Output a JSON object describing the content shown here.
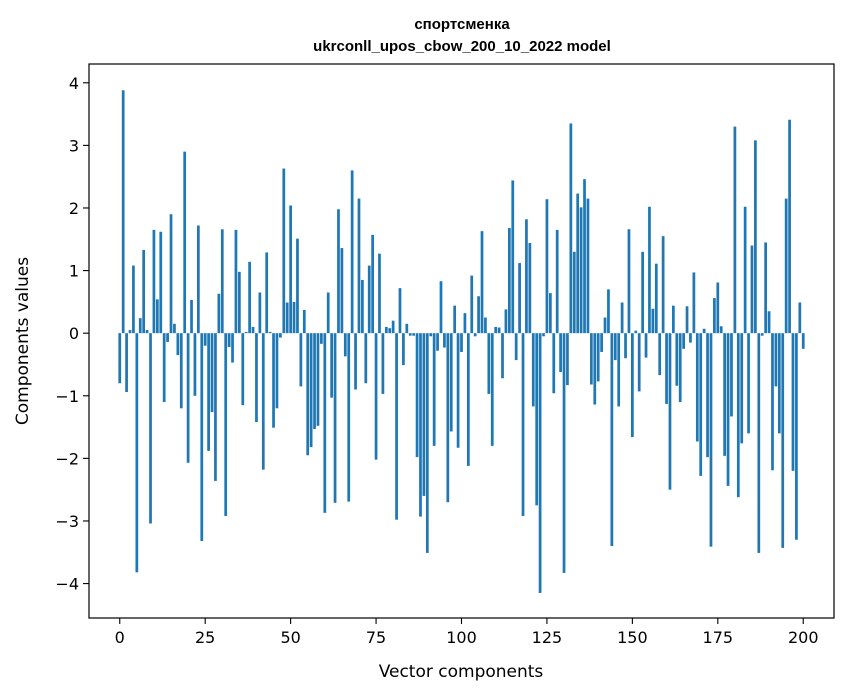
{
  "chart_data": {
    "type": "bar",
    "title_line1": "спортсменка",
    "title_line2": "ukrconll_upos_cbow_200_10_2022 model",
    "xlabel": "Vector components",
    "ylabel": "Components values",
    "xlim": [
      -9,
      209
    ],
    "ylim": [
      -4.55,
      4.3
    ],
    "xticks": [
      0,
      25,
      50,
      75,
      100,
      125,
      150,
      175,
      200
    ],
    "xtick_labels": [
      "0",
      "25",
      "50",
      "75",
      "100",
      "125",
      "150",
      "175",
      "200"
    ],
    "yticks": [
      -4,
      -3,
      -2,
      -1,
      0,
      1,
      2,
      3,
      4
    ],
    "ytick_labels": [
      "−4",
      "−3",
      "−2",
      "−1",
      "0",
      "1",
      "2",
      "3",
      "4"
    ],
    "grid": false,
    "bar_color": "#1f77b4",
    "values": [
      -0.8,
      3.88,
      -0.94,
      0.05,
      1.08,
      -3.82,
      0.24,
      1.33,
      0.05,
      -3.04,
      1.65,
      0.54,
      1.62,
      -1.1,
      -0.14,
      1.9,
      0.15,
      -0.35,
      -1.2,
      2.9,
      -2.07,
      0.53,
      -1.0,
      1.72,
      -3.32,
      -0.2,
      -1.88,
      -1.26,
      -2.36,
      0.63,
      1.66,
      -2.92,
      -0.22,
      -0.47,
      1.65,
      0.98,
      -1.15,
      0.02,
      1.14,
      0.1,
      -1.42,
      0.65,
      -2.18,
      1.29,
      0.02,
      -1.51,
      -1.2,
      -0.07,
      2.63,
      0.49,
      2.04,
      0.5,
      1.51,
      -0.85,
      0.37,
      -1.95,
      -1.82,
      -1.53,
      -1.48,
      -0.17,
      -2.87,
      0.65,
      -1.03,
      -2.71,
      1.98,
      1.36,
      -0.37,
      -2.69,
      2.6,
      -0.9,
      2.15,
      0.85,
      -0.8,
      1.08,
      1.57,
      -2.02,
      1.27,
      -0.97,
      0.1,
      0.08,
      0.2,
      -2.98,
      0.72,
      -0.51,
      0.15,
      -0.04,
      -0.04,
      -1.98,
      -2.93,
      -2.6,
      -3.51,
      -0.05,
      -1.8,
      -0.28,
      0.83,
      -0.23,
      -2.7,
      -1.57,
      0.44,
      -1.83,
      -0.3,
      0.32,
      -2.12,
      0.92,
      -0.05,
      0.59,
      1.63,
      0.25,
      -0.97,
      -1.8,
      0.1,
      0.09,
      -0.72,
      0.38,
      1.68,
      2.44,
      -0.43,
      1.12,
      -2.92,
      1.82,
      1.44,
      -1.17,
      -2.75,
      -4.15,
      -0.05,
      2.14,
      0.64,
      -0.96,
      1.65,
      -0.62,
      -3.83,
      -0.83,
      3.35,
      1.3,
      2.23,
      2.01,
      2.46,
      2.15,
      -0.82,
      -1.14,
      -0.77,
      -0.3,
      0.25,
      0.7,
      -3.4,
      -0.43,
      -1.17,
      0.49,
      -0.4,
      1.66,
      -1.66,
      0.04,
      -0.93,
      1.3,
      -0.39,
      2.02,
      0.39,
      1.11,
      -0.67,
      1.55,
      -1.13,
      -2.5,
      0.44,
      -0.84,
      -1.1,
      -0.25,
      0.43,
      -0.15,
      0.97,
      -1.73,
      -2.28,
      0.07,
      -1.98,
      -3.41,
      0.56,
      0.81,
      0.11,
      -1.96,
      -2.44,
      -1.33,
      3.3,
      -2.62,
      -1.76,
      2.02,
      -1.6,
      1.4,
      3.08,
      -3.51,
      -0.04,
      1.45,
      0.35,
      -2.19,
      -0.85,
      -1.6,
      -3.43,
      2.15,
      3.41,
      -2.2,
      -3.3,
      0.49,
      -0.25
    ]
  }
}
